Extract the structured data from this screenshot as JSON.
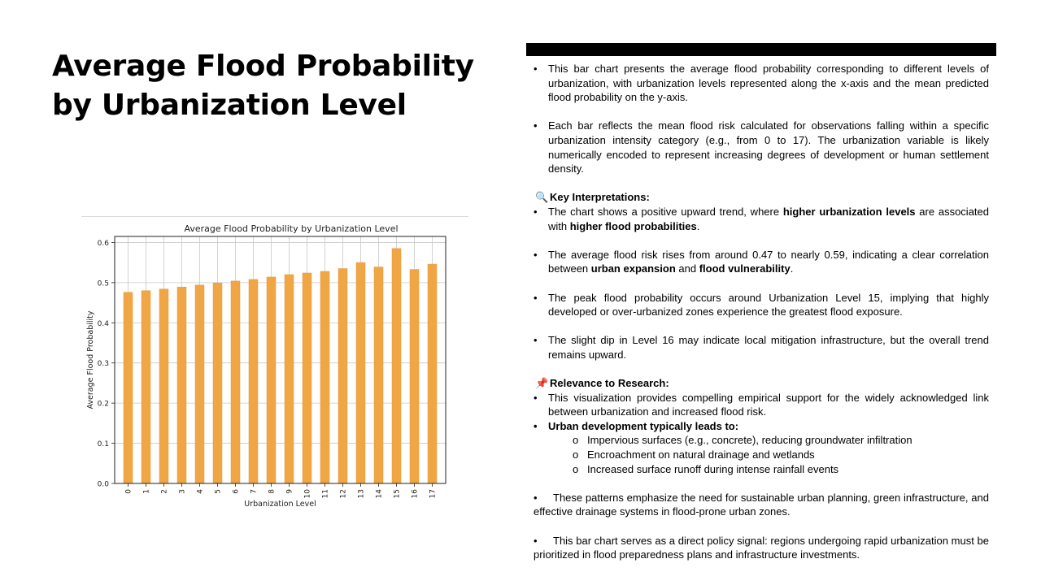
{
  "slide": {
    "title": "Average Flood Probability by Urbanization Level"
  },
  "colors": {
    "bar": "#f0a645",
    "bar_edge": "#e9993a",
    "grid": "#c8c8c8"
  },
  "text_panel": {
    "intro_1": "This bar chart presents the average flood probability corresponding to different levels of urbanization, with urbanization levels represented along the x-axis and the mean predicted flood probability on the y-axis.",
    "intro_2": "Each bar reflects the mean flood risk calculated for observations falling within a specific urbanization intensity category (e.g., from 0 to 17). The urbanization variable is likely numerically encoded to represent increasing degrees of development or human settlement density.",
    "key_heading": "Key Interpretations:",
    "key_icon": "magnifier-icon",
    "key_1_a": "The chart shows a positive upward trend, where ",
    "key_1_b": "higher urbanization levels",
    "key_1_c": " are associated with ",
    "key_1_d": "higher flood probabilities",
    "key_1_e": ".",
    "key_2_a": "The average flood risk rises from around 0.47 to nearly 0.59, indicating a clear correlation between ",
    "key_2_b": "urban expansion",
    "key_2_c": " and ",
    "key_2_d": "flood vulnerability",
    "key_2_e": ".",
    "key_3": "The peak flood probability occurs around Urbanization Level 15, implying that highly developed or over-urbanized zones experience the greatest flood exposure.",
    "key_4": "The slight dip in Level 16 may indicate local mitigation infrastructure, but the overall trend remains upward.",
    "rel_heading": "Relevance to Research:",
    "rel_icon": "pushpin-icon",
    "rel_1": "This visualization provides compelling empirical support for the widely acknowledged link between urbanization and increased flood risk.",
    "rel_2": "Urban development typically leads to:",
    "sub_1": "Impervious surfaces (e.g., concrete), reducing groundwater infiltration",
    "sub_2": "Encroachment on natural drainage and wetlands",
    "sub_3": "Increased surface runoff during intense rainfall events",
    "closing_1": "These patterns emphasize the need for sustainable urban planning, green infrastructure, and effective drainage systems in flood-prone urban zones.",
    "closing_2": "This bar chart serves as a direct policy signal: regions undergoing rapid urbanization must be prioritized in flood preparedness plans and infrastructure investments."
  },
  "chart_data": {
    "type": "bar",
    "title": "Average Flood Probability by Urbanization Level",
    "xlabel": "Urbanization Level",
    "ylabel": "Average Flood Probability",
    "categories": [
      "0",
      "1",
      "2",
      "3",
      "4",
      "5",
      "6",
      "7",
      "8",
      "9",
      "10",
      "11",
      "12",
      "13",
      "14",
      "15",
      "16",
      "17"
    ],
    "values": [
      0.476,
      0.48,
      0.484,
      0.489,
      0.494,
      0.499,
      0.504,
      0.508,
      0.514,
      0.52,
      0.524,
      0.528,
      0.535,
      0.55,
      0.539,
      0.585,
      0.533,
      0.546
    ],
    "ylim": [
      0,
      0.615
    ],
    "yticks": [
      "0.0",
      "0.1",
      "0.2",
      "0.3",
      "0.4",
      "0.5",
      "0.6"
    ],
    "grid": true,
    "legend": "none"
  }
}
